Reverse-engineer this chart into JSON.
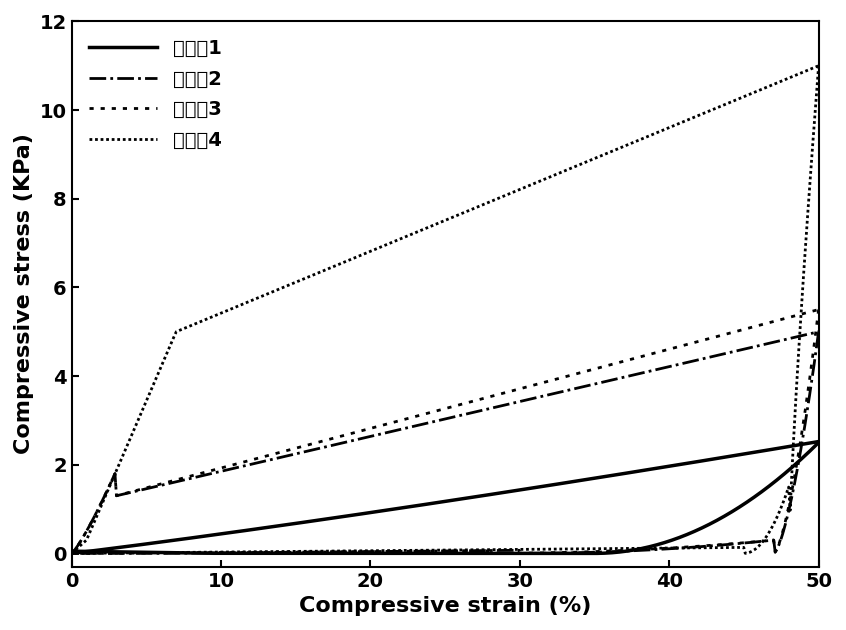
{
  "title": "",
  "xlabel": "Compressive strain (%)",
  "ylabel": "Compressive stress (KPa)",
  "xlim": [
    0,
    50
  ],
  "ylim": [
    -0.3,
    12
  ],
  "yticks": [
    0,
    2,
    4,
    6,
    8,
    10,
    12
  ],
  "xticks": [
    0,
    10,
    20,
    30,
    40,
    50
  ],
  "legend_labels": [
    "对比例1",
    "实施例2",
    "实施例3",
    "实施例4"
  ],
  "color": "#000000",
  "background": "#ffffff",
  "font_size_label": 16,
  "font_size_tick": 14,
  "font_size_legend": 14,
  "line_width": 2.0
}
